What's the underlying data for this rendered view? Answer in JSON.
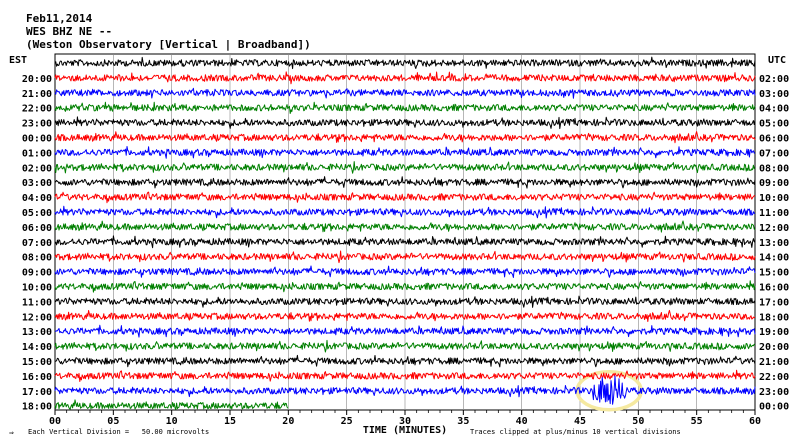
{
  "header": {
    "date": "Feb11,2014",
    "station": "WES BHZ NE --",
    "observatory": "(Weston Observatory [Vertical | Broadband])"
  },
  "chart_data": {
    "type": "line",
    "title": "Feb11,2014",
    "subtitle": "WES BHZ NE -- (Weston Observatory [Vertical | Broadband])",
    "xlabel": "TIME (MINUTES)",
    "left_axis_label": "EST",
    "right_axis_label": "UTC",
    "x_ticks": [
      "00",
      "05",
      "10",
      "15",
      "20",
      "25",
      "30",
      "35",
      "40",
      "45",
      "50",
      "55",
      "60"
    ],
    "xlim": [
      0,
      60
    ],
    "grid": true,
    "rows_est": [
      "20:00",
      "21:00",
      "22:00",
      "23:00",
      "00:00",
      "01:00",
      "02:00",
      "03:00",
      "04:00",
      "05:00",
      "06:00",
      "07:00",
      "08:00",
      "09:00",
      "10:00",
      "11:00",
      "12:00",
      "13:00",
      "14:00",
      "15:00",
      "16:00",
      "17:00",
      "18:00"
    ],
    "rows_utc": [
      "02:00",
      "03:00",
      "04:00",
      "05:00",
      "06:00",
      "07:00",
      "08:00",
      "09:00",
      "10:00",
      "11:00",
      "12:00",
      "13:00",
      "14:00",
      "15:00",
      "16:00",
      "17:00",
      "18:00",
      "19:00",
      "20:00",
      "21:00",
      "22:00",
      "23:00",
      "00:00"
    ],
    "trace_colors": [
      "#000000",
      "#ff0000",
      "#0000ff",
      "#008000"
    ],
    "extra_top_trace_color": "#000000",
    "last_row_end_minute": 20,
    "event": {
      "row": "17:00",
      "minute": 47.5,
      "highlight_color": "#f5e9a0"
    }
  },
  "footer": {
    "left": "Each Vertical Division =   50.00 microvolts",
    "right": "Traces clipped at plus/minus 10 vertical divisions",
    "arrow": "⇒"
  }
}
